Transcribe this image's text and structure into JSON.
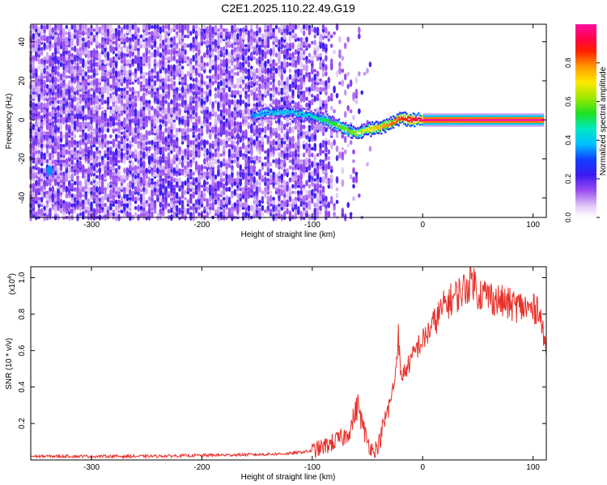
{
  "title": "C2E1.2025.110.22.49.G19",
  "colors": {
    "snr_line": "#e8302a",
    "spectrogram_noise": "#7a2cf0",
    "signal_peak": "#ff1010",
    "axis": "#000000"
  },
  "colorbar": {
    "label": "Normalized spectral amplitude",
    "ticks": [
      "0.0",
      "0.2",
      "0.4",
      "0.6",
      "0.8"
    ],
    "tick_values": [
      0.0,
      0.2,
      0.4,
      0.6,
      0.8
    ],
    "range": [
      0,
      1
    ],
    "colormap": "rainbow (white-purple-blue-cyan-green-yellow-orange-red-magenta)"
  },
  "chart_data": [
    {
      "type": "heatmap",
      "xlabel": "Height of straight line (km)",
      "ylabel": "Frequency (Hz)",
      "xlim": [
        -355,
        112
      ],
      "ylim": [
        -50,
        49
      ],
      "xticks": [
        -300,
        -200,
        -100,
        0,
        100
      ],
      "xtick_labels": [
        "-300",
        "-200",
        "-100",
        "0",
        "100"
      ],
      "yticks": [
        -40,
        -20,
        0,
        20,
        40
      ],
      "ytick_labels": [
        "-40",
        "-20",
        "0",
        "20",
        "40"
      ],
      "noise_region_x": [
        -355,
        -85
      ],
      "signal_track": {
        "x": [
          -155,
          -140,
          -120,
          -100,
          -80,
          -60,
          -50,
          -40,
          -30,
          -20,
          -10,
          0,
          50,
          110
        ],
        "freq_hz": [
          2,
          4,
          4,
          2,
          -2,
          -7,
          -5,
          -4,
          -2,
          1,
          0,
          0,
          0,
          0
        ],
        "amplitude": [
          0.35,
          0.4,
          0.4,
          0.45,
          0.55,
          0.6,
          0.7,
          0.75,
          0.8,
          0.85,
          0.9,
          0.98,
          1.0,
          1.0
        ]
      },
      "isolated_feature": {
        "x": -338,
        "freq_hz": -26,
        "amplitude": 0.35
      },
      "grid": false
    },
    {
      "type": "line",
      "xlabel": "Height of straight line (km)",
      "ylabel": "SNR (10 * v/v)",
      "y_multiplier": "(x10",
      "y_multiplier_exp": "4",
      "xlim": [
        -355,
        112
      ],
      "ylim": [
        0,
        1.06
      ],
      "xticks": [
        -300,
        -200,
        -100,
        0,
        100
      ],
      "xtick_labels": [
        "-300",
        "-200",
        "-100",
        "0",
        "100"
      ],
      "yticks": [
        0.2,
        0.4,
        0.6,
        0.8,
        1.0
      ],
      "ytick_labels": [
        "0.2",
        "0.4",
        "0.6",
        "0.8",
        "1.0"
      ],
      "series": [
        {
          "x": [
            -355,
            -300,
            -250,
            -200,
            -150,
            -120,
            -100,
            -90,
            -80,
            -70,
            -65,
            -60,
            -58,
            -55,
            -50,
            -45,
            -40,
            -35,
            -30,
            -25,
            -22,
            -20,
            -15,
            -10,
            -5,
            0,
            10,
            20,
            30,
            40,
            45,
            50,
            60,
            70,
            80,
            90,
            100,
            105,
            110,
            112
          ],
          "y": [
            0.02,
            0.02,
            0.02,
            0.025,
            0.03,
            0.035,
            0.05,
            0.07,
            0.1,
            0.13,
            0.18,
            0.28,
            0.3,
            0.2,
            0.1,
            0.05,
            0.08,
            0.2,
            0.3,
            0.45,
            0.7,
            0.45,
            0.5,
            0.55,
            0.62,
            0.65,
            0.75,
            0.85,
            0.9,
            0.95,
            1.0,
            0.92,
            0.9,
            0.87,
            0.85,
            0.84,
            0.82,
            0.85,
            0.65,
            0.62
          ]
        }
      ],
      "grid": false
    }
  ]
}
